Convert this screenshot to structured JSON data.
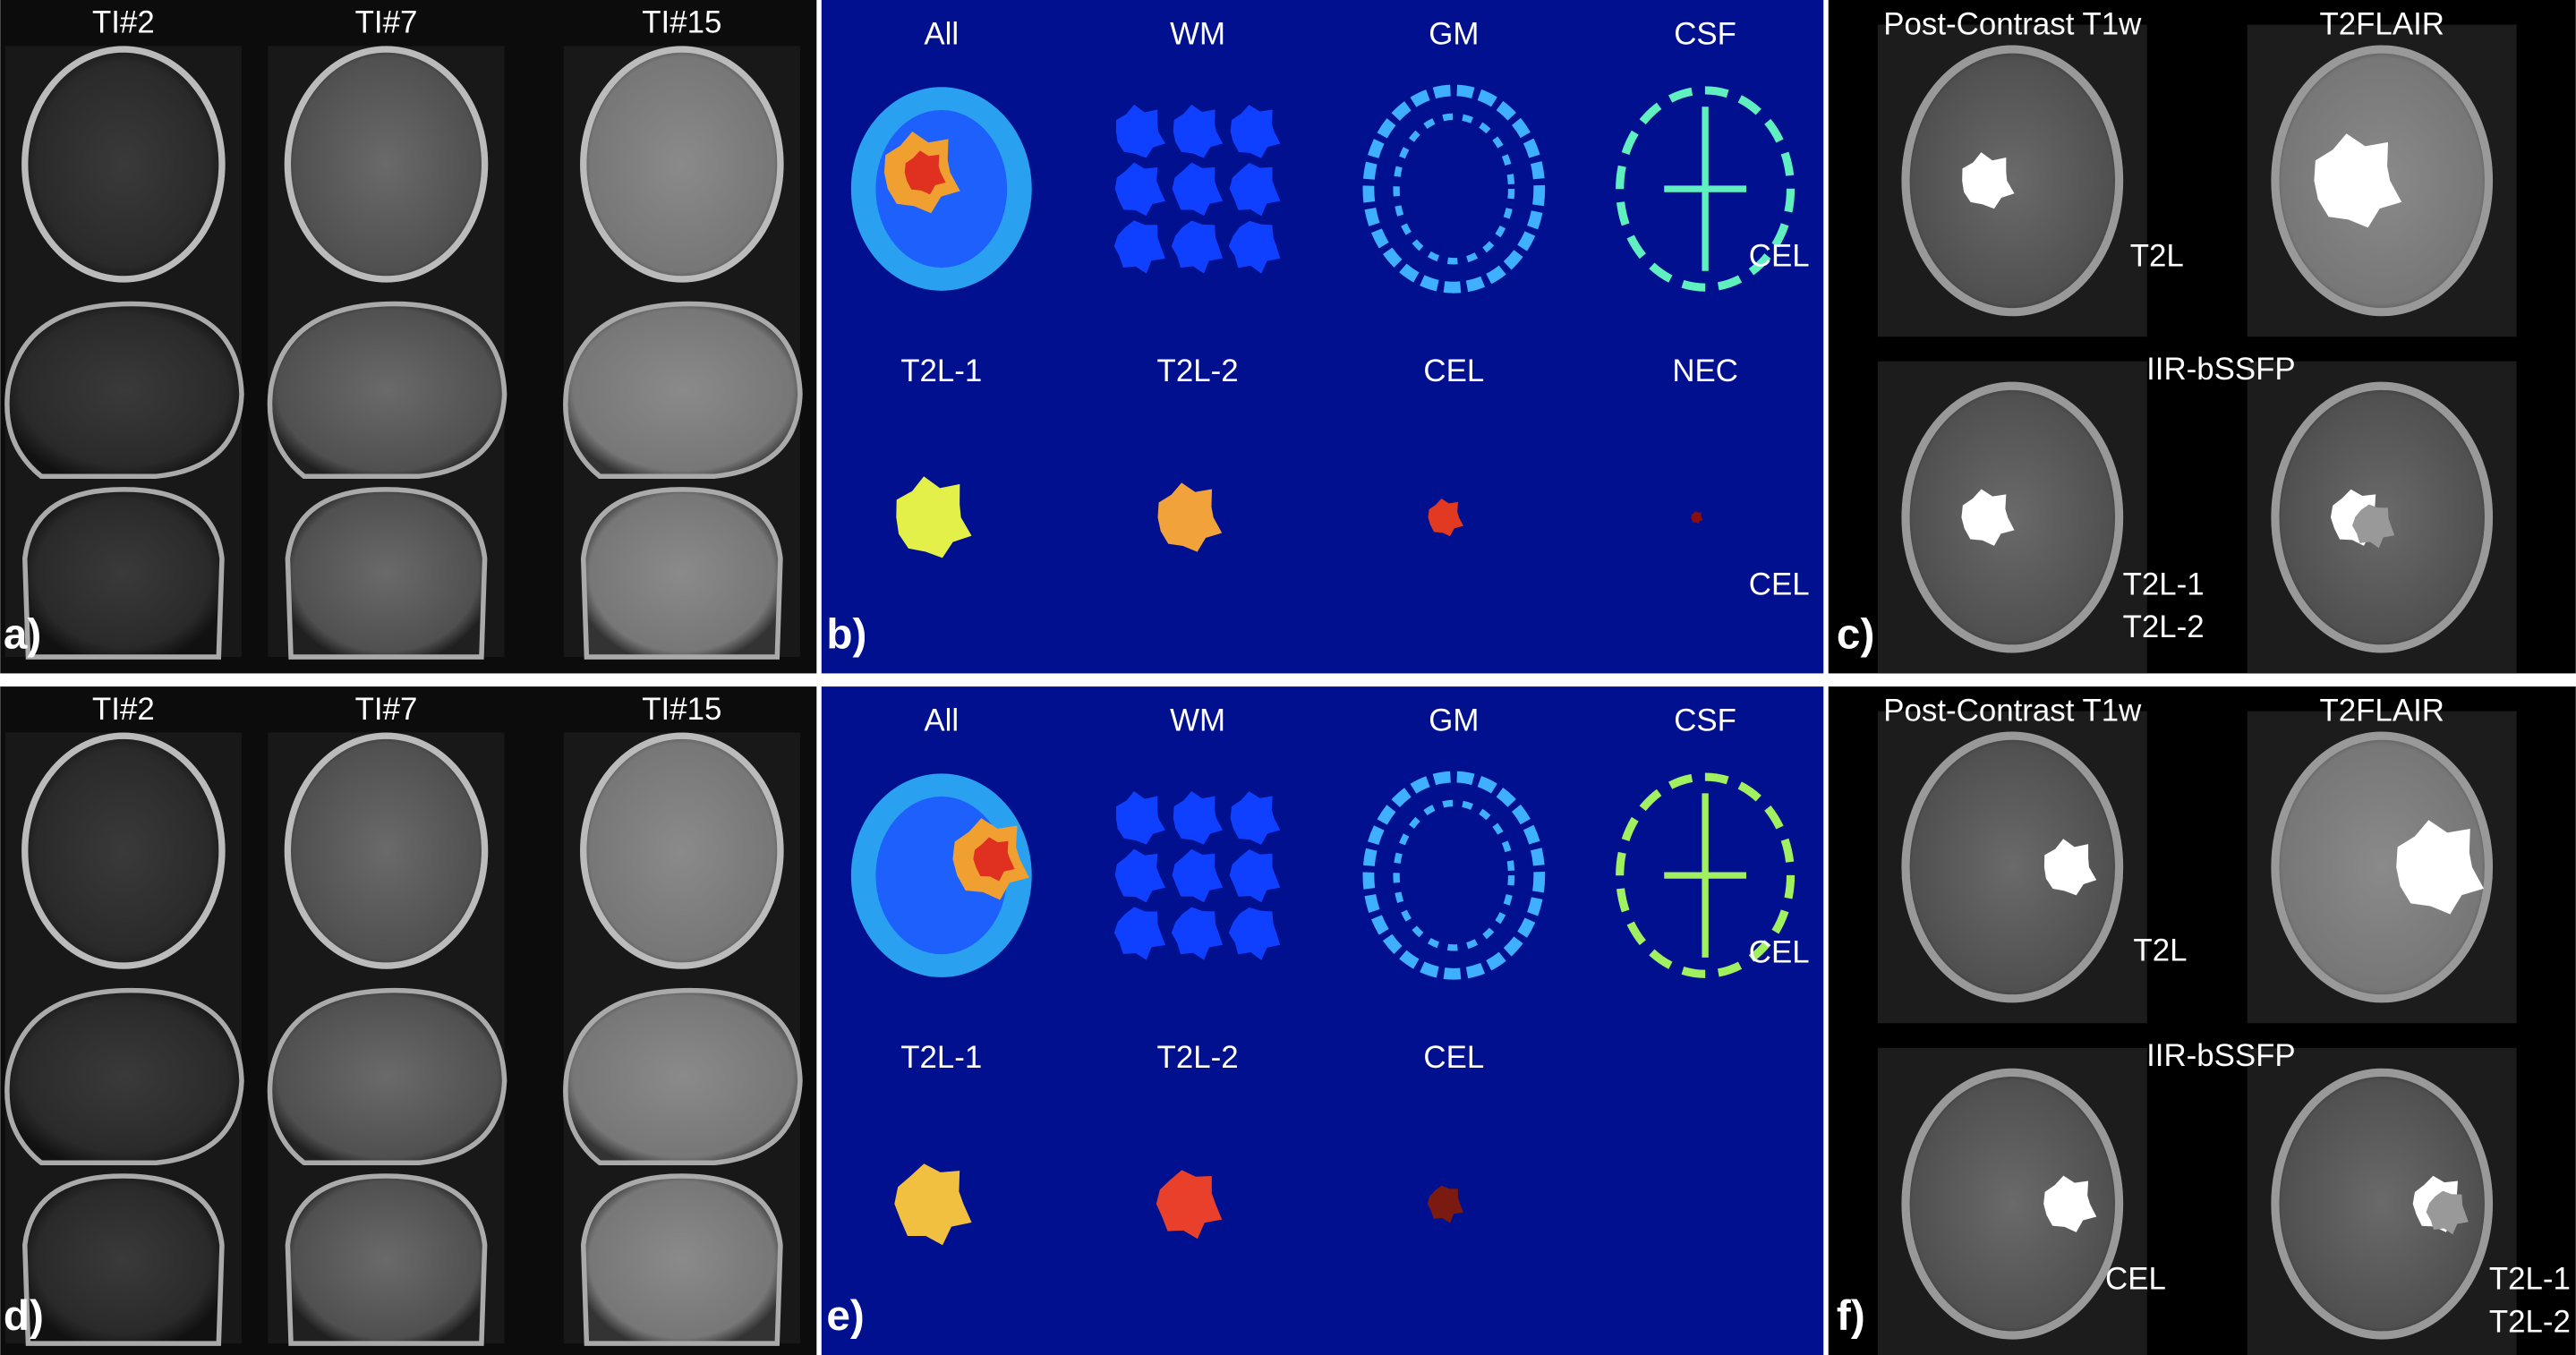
{
  "rows": [
    {
      "panel_a": {
        "label": "a)",
        "columns": [
          "TI#2",
          "TI#7",
          "TI#15"
        ]
      },
      "panel_b": {
        "label": "b)",
        "top_titles": [
          "All",
          "WM",
          "GM",
          "CSF"
        ],
        "bottom_titles": [
          "T2L-1",
          "T2L-2",
          "CEL",
          "NEC"
        ],
        "annotations": [
          "CEL",
          "CEL"
        ]
      },
      "panel_c": {
        "label": "c)",
        "titles": [
          "Post-Contrast T1w",
          "T2FLAIR"
        ],
        "middle_title": "IIR-bSSFP",
        "annotations": [
          "T2L",
          "T2L-1",
          "T2L-2"
        ]
      }
    },
    {
      "panel_a": {
        "label": "d)",
        "columns": [
          "TI#2",
          "TI#7",
          "TI#15"
        ]
      },
      "panel_b": {
        "label": "e)",
        "top_titles": [
          "All",
          "WM",
          "GM",
          "CSF"
        ],
        "bottom_titles": [
          "T2L-1",
          "T2L-2",
          "CEL"
        ],
        "annotations": [
          "CEL"
        ]
      },
      "panel_c": {
        "label": "f)",
        "titles": [
          "Post-Contrast T1w",
          "T2FLAIR"
        ],
        "middle_title": "IIR-bSSFP",
        "annotations": [
          "T2L",
          "CEL",
          "T2L-1",
          "T2L-2"
        ]
      }
    }
  ]
}
